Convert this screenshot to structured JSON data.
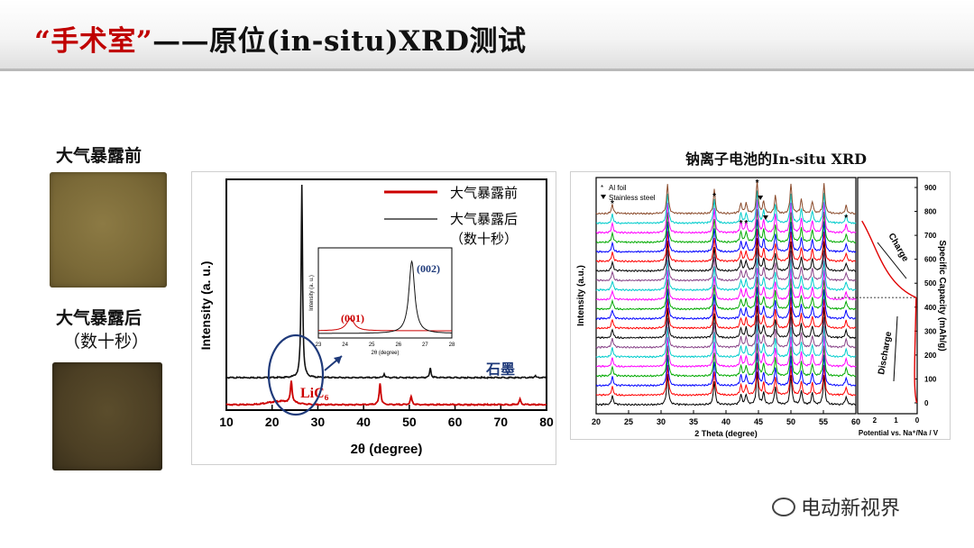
{
  "slide": {
    "title_quote": "“手术室”",
    "title_rest": "——原位(in-situ)XRD测试",
    "watermark": "电动新视界"
  },
  "samples": {
    "before_label": "大气暴露前",
    "after_label_line1": "大气暴露后",
    "after_label_line2": "（数十秒）"
  },
  "colors": {
    "title_accent": "#c00000",
    "curve_before": "#cc0000",
    "curve_after": "#111111",
    "ellipse": "#1f3a7a"
  },
  "chart_data": [
    {
      "type": "line",
      "title": "",
      "xlabel": "2θ (degree)",
      "ylabel": "Intensity (a. u.)",
      "xlim": [
        10,
        80
      ],
      "x_ticks": [
        10,
        20,
        30,
        40,
        50,
        60,
        70,
        80
      ],
      "grid": false,
      "legend_position": "top-right",
      "series": [
        {
          "name": "大气暴露前",
          "color": "#cc0000",
          "peaks": [
            {
              "x": 24.2,
              "h": 0.16
            },
            {
              "x": 43.6,
              "h": 0.16
            },
            {
              "x": 50.4,
              "h": 0.06
            },
            {
              "x": 74.2,
              "h": 0.04
            }
          ]
        },
        {
          "name": "大气暴露后 （数十秒）",
          "color": "#111111",
          "peaks": [
            {
              "x": 26.5,
              "h": 1.0
            },
            {
              "x": 44.5,
              "h": 0.02
            },
            {
              "x": 54.6,
              "h": 0.05
            },
            {
              "x": 77.5,
              "h": 0.01
            }
          ]
        }
      ],
      "annotations": [
        {
          "text": "LiC₆"
        },
        {
          "text": "石墨"
        }
      ],
      "inset": {
        "xlabel": "2θ (degree)",
        "ylabel": "Intensity (a. u.)",
        "xlim": [
          23,
          28
        ],
        "x_ticks": [
          23,
          24,
          25,
          26,
          27,
          28
        ],
        "peak_labels": [
          "(001)",
          "(002)"
        ]
      }
    },
    {
      "type": "line",
      "title": "钠离子电池的In-situ XRD",
      "xlabel": "2 Theta (degree)",
      "ylabel": "Intensity (a.u.)",
      "xlim": [
        20,
        60
      ],
      "x_ticks": [
        20,
        25,
        30,
        35,
        40,
        45,
        50,
        55,
        60
      ],
      "legend": [
        "Al foil",
        "Stainless steel"
      ],
      "legend_position": "top-left",
      "peaks_2theta": [
        22.5,
        31.0,
        38.2,
        42.3,
        43.1,
        44.8,
        45.8,
        47.6,
        50.0,
        51.6,
        53.3,
        55.1,
        58.5
      ],
      "scan_colors": [
        "#000000",
        "#ff0000",
        "#0000ff",
        "#00aa00",
        "#ff00ff",
        "#00cccc",
        "#884488",
        "#000000",
        "#ff0000",
        "#0000ff",
        "#00aa00",
        "#ff00ff",
        "#00cccc",
        "#884488",
        "#000000",
        "#ff0000",
        "#0000ff",
        "#00aa00",
        "#ff00ff",
        "#00cccc",
        "#8a4a2a"
      ],
      "side_panel": {
        "xlabel": "Potential vs. Na⁺/Na / V",
        "ylabel": "Specific Capacity (mAh/g)",
        "x_ticks": [
          2,
          1,
          0
        ],
        "y_ticks": [
          0,
          100,
          200,
          300,
          400,
          500,
          600,
          700,
          800,
          900
        ],
        "labels": [
          "Charge",
          "Discharge"
        ]
      }
    }
  ]
}
